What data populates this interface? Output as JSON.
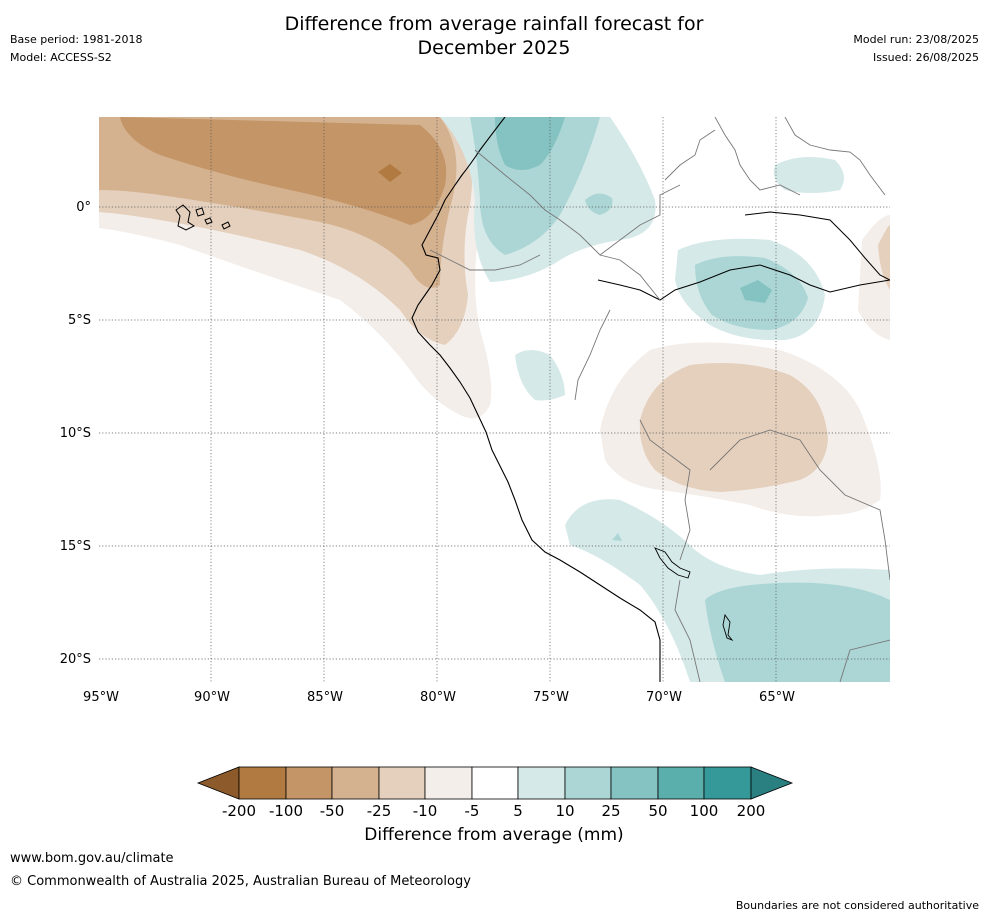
{
  "header": {
    "title_line1": "Difference from average rainfall forecast for",
    "title_line2": "December 2025",
    "base_period": "Base period: 1981-2018",
    "model": "Model: ACCESS-S2",
    "model_run": "Model run: 23/08/2025",
    "issued": "Issued: 26/08/2025"
  },
  "map": {
    "lat_labels": [
      "0°",
      "5°S",
      "10°S",
      "15°S",
      "20°S"
    ],
    "lon_labels": [
      "95°W",
      "90°W",
      "85°W",
      "80°W",
      "75°W",
      "70°W",
      "65°W"
    ]
  },
  "legend": {
    "title": "Difference from average (mm)",
    "tick_labels": [
      "-200",
      "-100",
      "-50",
      "-25",
      "-10",
      "-5",
      "5",
      "10",
      "25",
      "50",
      "100",
      "200"
    ],
    "colors": [
      "#8c5a2b",
      "#b07a40",
      "#c39567",
      "#d5b28f",
      "#e4d0bd",
      "#f4eeea",
      "#ffffff",
      "#d5e9e8",
      "#abd6d5",
      "#84c3c1",
      "#5aaeab",
      "#35999a",
      "#2a7f80"
    ]
  },
  "footer": {
    "url": "www.bom.gov.au/climate",
    "copyright": "© Commonwealth of Australia 2025, Australian Bureau of Meteorology",
    "disclaimer": "Boundaries are not considered authoritative"
  }
}
